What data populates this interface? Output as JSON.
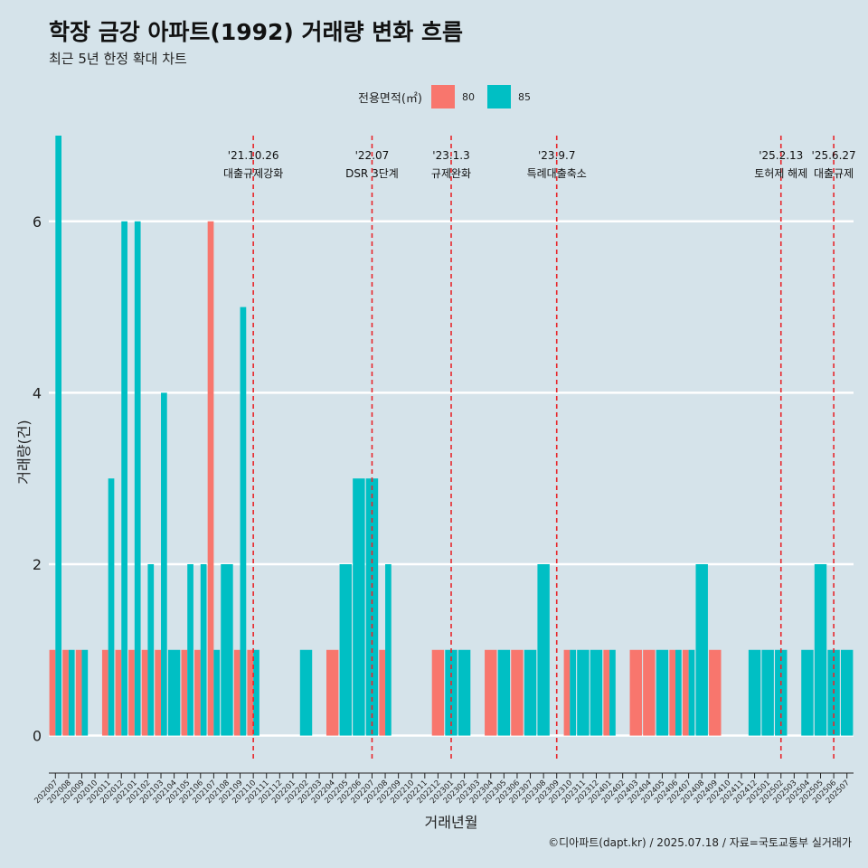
{
  "chart_data": {
    "type": "bar",
    "title": "학장 금강 아파트(1992) 거래량 변화 흐름",
    "subtitle": "최근 5년 한정 확대 차트",
    "xlabel": "거래년월",
    "ylabel": "거래량(건)",
    "ylim": [
      -0.3,
      7.0
    ],
    "yticks": [
      0,
      2,
      4,
      6
    ],
    "legend": {
      "title": "전용면적(㎡)",
      "position": "top"
    },
    "colors": {
      "80": "#f8766d",
      "85": "#00bfc4",
      "vline": "#e8262b",
      "grid": "#ffffff"
    },
    "categories": [
      "202007",
      "202008",
      "202009",
      "202010",
      "202011",
      "202012",
      "202101",
      "202102",
      "202103",
      "202104",
      "202105",
      "202106",
      "202107",
      "202108",
      "202109",
      "202110",
      "202111",
      "202112",
      "202201",
      "202202",
      "202203",
      "202204",
      "202205",
      "202206",
      "202207",
      "202208",
      "202209",
      "202210",
      "202211",
      "202212",
      "202301",
      "202302",
      "202303",
      "202304",
      "202305",
      "202306",
      "202307",
      "202308",
      "202309",
      "202310",
      "202311",
      "202312",
      "202401",
      "202402",
      "202403",
      "202404",
      "202405",
      "202406",
      "202407",
      "202408",
      "202409",
      "202410",
      "202411",
      "202412",
      "202501",
      "202502",
      "202503",
      "202504",
      "202505",
      "202506",
      "202507"
    ],
    "series": [
      {
        "name": "80",
        "values": [
          1,
          1,
          1,
          0,
          1,
          1,
          1,
          1,
          1,
          0,
          1,
          1,
          6,
          0,
          1,
          1,
          0,
          0,
          0,
          0,
          0,
          1,
          0,
          0,
          0,
          1,
          0,
          0,
          0,
          1,
          0,
          0,
          0,
          1,
          0,
          1,
          0,
          0,
          0,
          1,
          0,
          0,
          1,
          0,
          1,
          1,
          0,
          1,
          1,
          0,
          1,
          0,
          0,
          0,
          0,
          0,
          0,
          0,
          0,
          0,
          0
        ]
      },
      {
        "name": "85",
        "values": [
          7,
          1,
          1,
          0,
          3,
          6,
          6,
          2,
          4,
          1,
          2,
          2,
          1,
          2,
          5,
          1,
          0,
          0,
          0,
          1,
          0,
          0,
          2,
          3,
          3,
          2,
          0,
          0,
          0,
          0,
          1,
          1,
          0,
          0,
          1,
          0,
          1,
          2,
          0,
          1,
          1,
          1,
          1,
          0,
          0,
          0,
          1,
          1,
          1,
          2,
          0,
          0,
          0,
          1,
          1,
          1,
          0,
          1,
          2,
          1,
          1
        ]
      }
    ],
    "annotations": [
      {
        "date": "'21.10.26",
        "label": "대출규제강화",
        "category": "202110"
      },
      {
        "date": "'22.07",
        "label": "DSR 3단계",
        "category": "202207"
      },
      {
        "date": "'23.1.3",
        "label": "규제완화",
        "category": "202301"
      },
      {
        "date": "'23.9.7",
        "label": "특례대출축소",
        "category": "202309"
      },
      {
        "date": "'25.2.13",
        "label": "토허제 해제",
        "category": "202502"
      },
      {
        "date": "'25.6.27",
        "label": "대출규제",
        "category": "202506"
      }
    ]
  },
  "caption": "©디아파트(dapt.kr) / 2025.07.18 / 자료=국토교통부 실거래가"
}
